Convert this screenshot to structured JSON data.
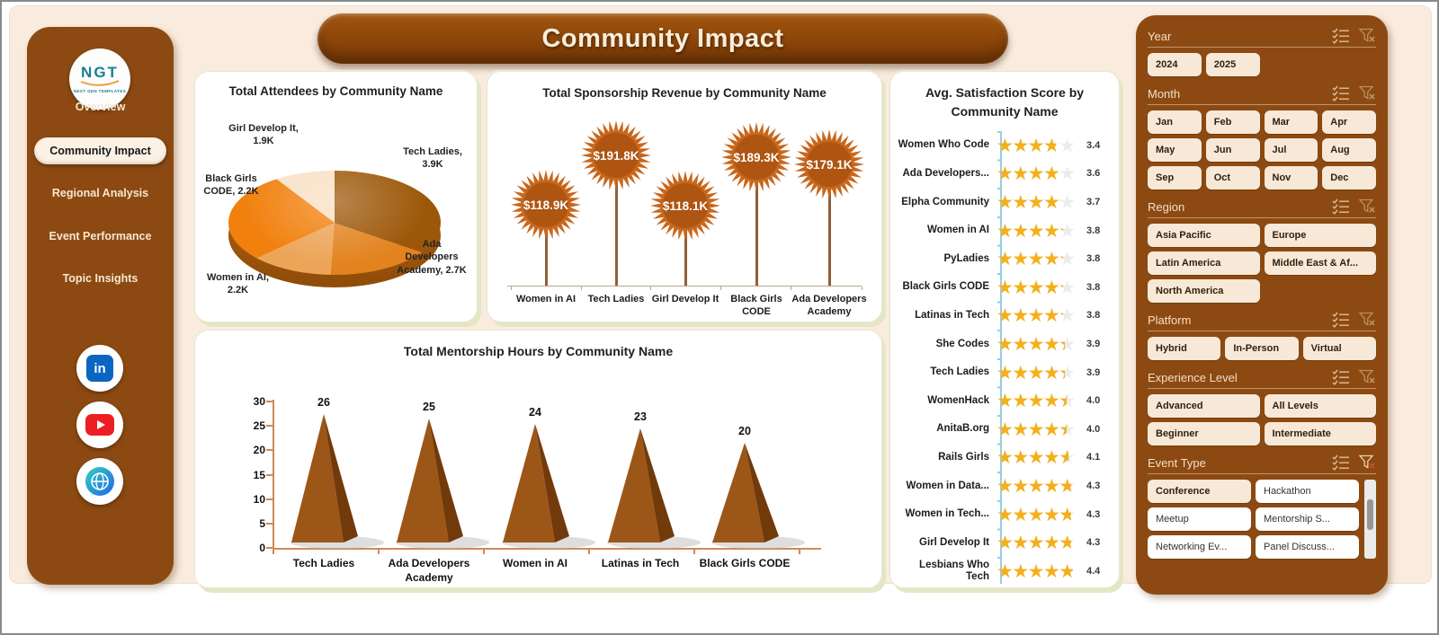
{
  "page": {
    "title": "Community Impact"
  },
  "sidebar": {
    "logo_text": "NGT",
    "logo_tagline": "NEXT GEN TEMPLATES",
    "nav": [
      {
        "label": "Overview",
        "active": false
      },
      {
        "label": "Community Impact",
        "active": true
      },
      {
        "label": "Regional Analysis",
        "active": false
      },
      {
        "label": "Event Performance",
        "active": false
      },
      {
        "label": "Topic Insights",
        "active": false
      }
    ],
    "social": [
      "linkedin",
      "youtube",
      "website"
    ]
  },
  "colors": {
    "brown_panel": "#8C4A12",
    "canvas_cream": "#f9ecdf",
    "star_gold": "#F3B01C",
    "flower_orange": "#C8671C",
    "pyramid_front": "#9C5617",
    "pyramid_side": "#72390A"
  },
  "chart_data": [
    {
      "id": "attendees",
      "type": "pie",
      "title": "Total Attendees by Community Name",
      "labels": [
        "Tech Ladies",
        "Ada Developers Academy",
        "Women in AI",
        "Black Girls CODE",
        "Girl Develop It"
      ],
      "values": [
        3900,
        2700,
        2200,
        2200,
        1900
      ],
      "display_values": [
        "3.9K",
        "2.7K",
        "2.2K",
        "2.2K",
        "1.9K"
      ],
      "colors": [
        "#9C5708",
        "#E2831F",
        "#ECA558",
        "#F1800D",
        "#F8E0C4"
      ]
    },
    {
      "id": "sponsorship",
      "type": "lollipop",
      "title": "Total Sponsorship Revenue by Community Name",
      "categories": [
        "Women in AI",
        "Tech Ladies",
        "Girl Develop It",
        "Black Girls CODE",
        "Ada Developers Academy"
      ],
      "values": [
        118900,
        191800,
        118100,
        189300,
        179100
      ],
      "display_values": [
        "$118.9K",
        "$191.8K",
        "$118.1K",
        "$189.3K",
        "$179.1K"
      ]
    },
    {
      "id": "mentorship",
      "type": "bar",
      "title": "Total Mentorship Hours by Community Name",
      "categories": [
        "Tech Ladies",
        "Ada Developers Academy",
        "Women in AI",
        "Latinas in Tech",
        "Black Girls CODE"
      ],
      "values": [
        26,
        25,
        24,
        23,
        20
      ],
      "ylim": [
        0,
        30
      ],
      "yticks": [
        0,
        5,
        10,
        15,
        20,
        25,
        30
      ]
    },
    {
      "id": "satisfaction",
      "type": "stars",
      "title": "Avg. Satisfaction Score by Community Name",
      "max": 5,
      "rows": [
        {
          "label": "Women Who Code",
          "value": 3.4
        },
        {
          "label": "Ada Developers...",
          "value": 3.6
        },
        {
          "label": "Elpha Community",
          "value": 3.7
        },
        {
          "label": "Women in AI",
          "value": 3.8
        },
        {
          "label": "PyLadies",
          "value": 3.8
        },
        {
          "label": "Black Girls CODE",
          "value": 3.8
        },
        {
          "label": "Latinas in Tech",
          "value": 3.8
        },
        {
          "label": "She Codes",
          "value": 3.9
        },
        {
          "label": "Tech Ladies",
          "value": 3.9
        },
        {
          "label": "WomenHack",
          "value": 4.0
        },
        {
          "label": "AnitaB.org",
          "value": 4.0
        },
        {
          "label": "Rails Girls",
          "value": 4.1
        },
        {
          "label": "Women in Data...",
          "value": 4.3
        },
        {
          "label": "Women in Tech...",
          "value": 4.3
        },
        {
          "label": "Girl Develop It",
          "value": 4.3
        },
        {
          "label": "Lesbians Who Tech",
          "value": 4.4
        }
      ]
    }
  ],
  "filters": {
    "sections": [
      {
        "label": "Year",
        "cols": 4,
        "items": [
          "2024",
          "2025"
        ]
      },
      {
        "label": "Month",
        "cols": 4,
        "items": [
          "Jan",
          "Feb",
          "Mar",
          "Apr",
          "May",
          "Jun",
          "Jul",
          "Aug",
          "Sep",
          "Oct",
          "Nov",
          "Dec"
        ]
      },
      {
        "label": "Region",
        "cols": 2,
        "items": [
          "Asia Pacific",
          "Europe",
          "Latin America",
          "Middle East & Af...",
          "North America"
        ]
      },
      {
        "label": "Platform",
        "cols": 3,
        "items": [
          "Hybrid",
          "In-Person",
          "Virtual"
        ]
      },
      {
        "label": "Experience Level",
        "cols": 2,
        "items": [
          "Advanced",
          "All Levels",
          "Beginner",
          "Intermediate"
        ]
      },
      {
        "label": "Event Type",
        "cols": 2,
        "filter_active": true,
        "has_scrollbar": true,
        "items": [
          {
            "label": "Conference",
            "selected": true
          },
          {
            "label": "Hackathon",
            "selected": false
          },
          {
            "label": "Meetup",
            "selected": false
          },
          {
            "label": "Mentorship S...",
            "selected": false
          },
          {
            "label": "Networking Ev...",
            "selected": false
          },
          {
            "label": "Panel Discuss...",
            "selected": false
          }
        ]
      }
    ]
  }
}
